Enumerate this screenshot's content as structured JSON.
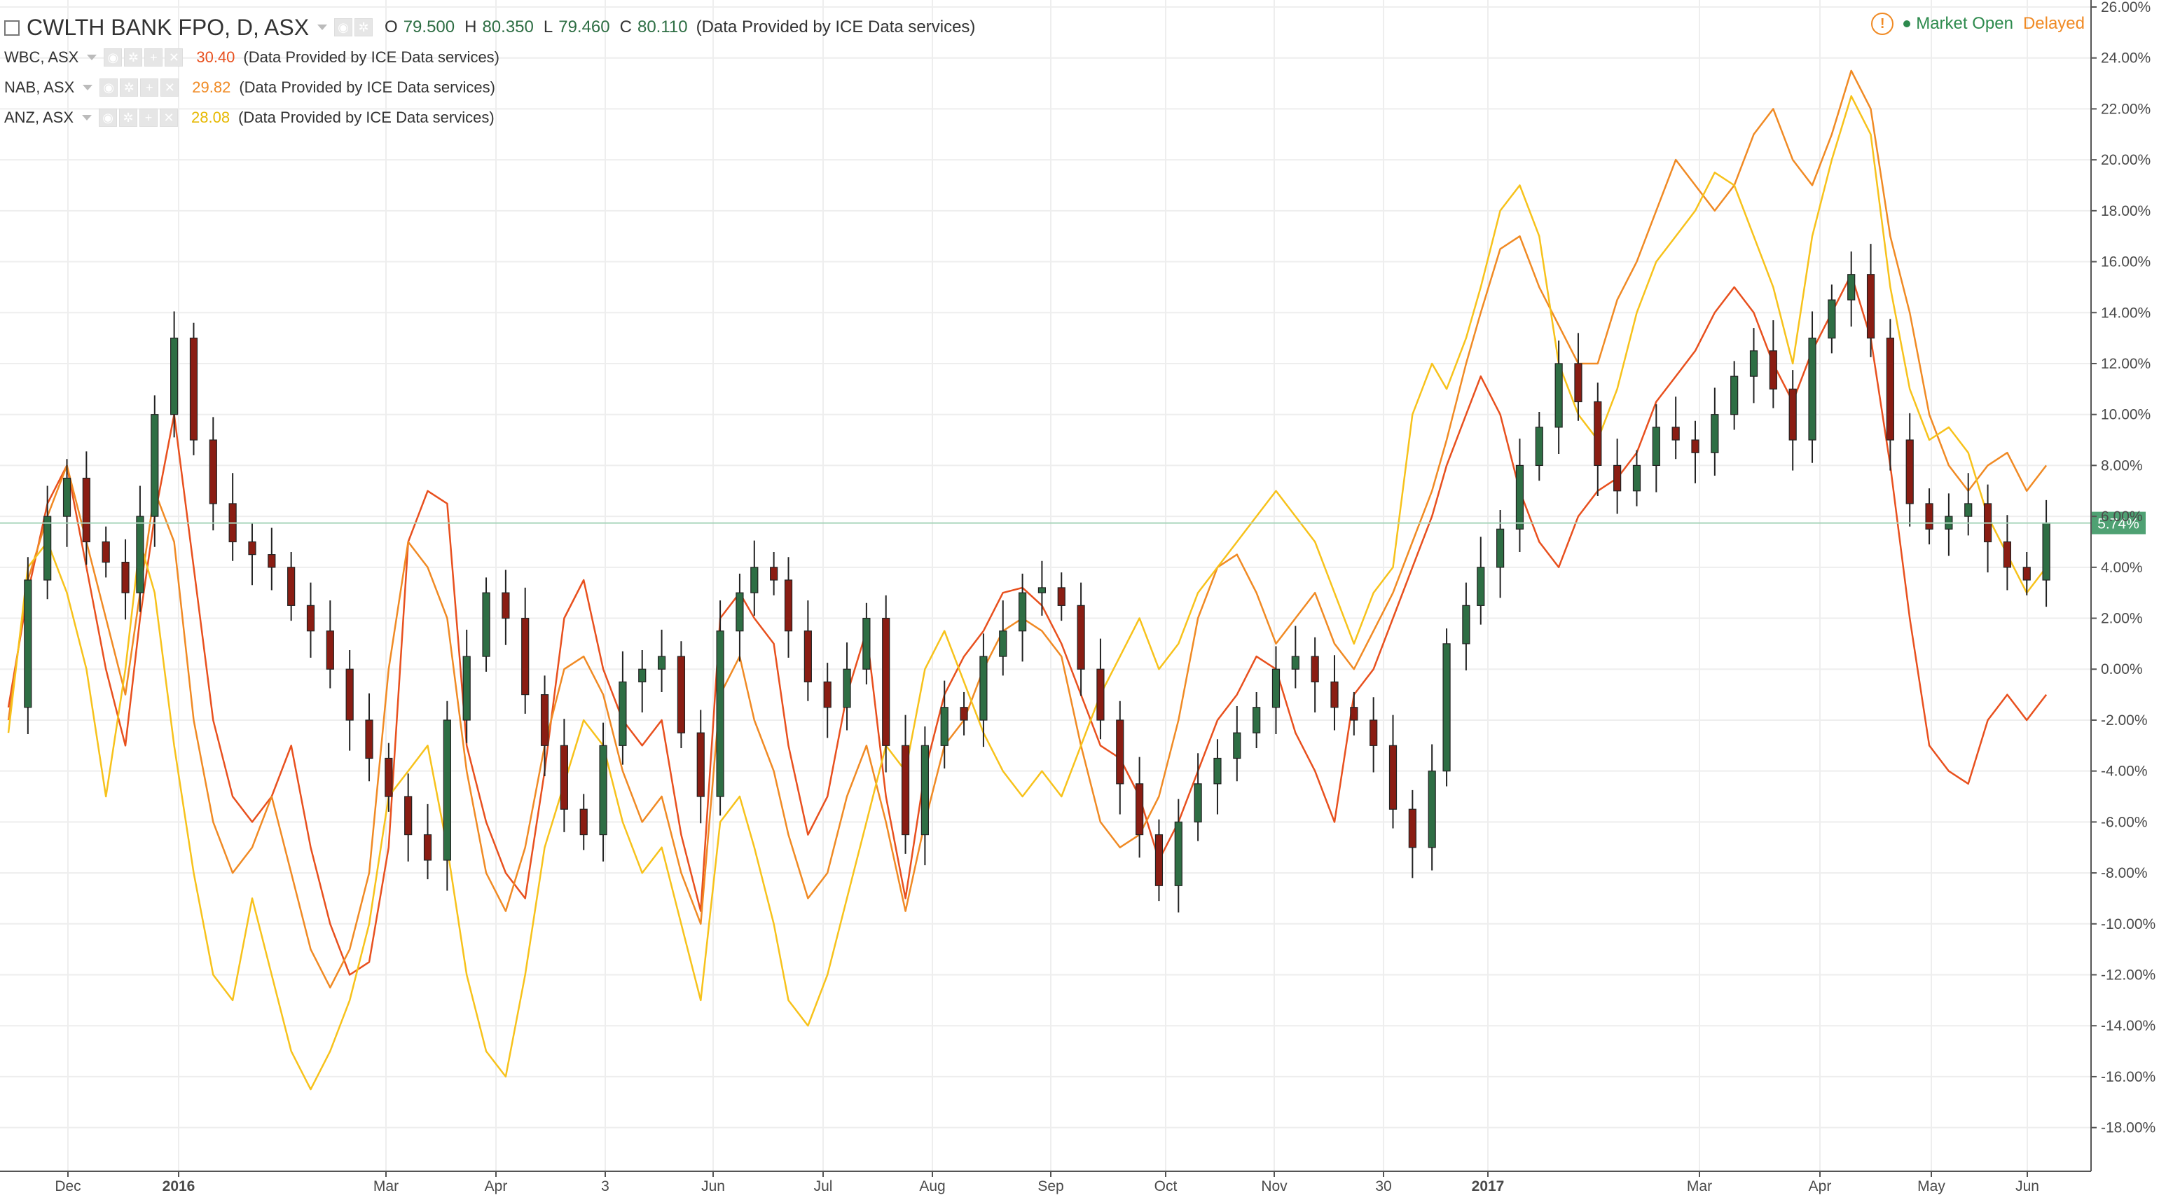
{
  "header": {
    "symbol": "CWLTH BANK FPO, D, ASX",
    "open_label": "O",
    "open": "79.500",
    "high_label": "H",
    "high": "80.350",
    "low_label": "L",
    "low": "79.460",
    "close_label": "C",
    "close": "80.110",
    "provider": "(Data Provided by ICE Data services)"
  },
  "market_status": {
    "open_text": "Market Open",
    "delayed_text": "Delayed",
    "warn_glyph": "!"
  },
  "comparisons": [
    {
      "name": "WBC, ASX",
      "value": "30.40",
      "provider": "(Data Provided by ICE Data services)",
      "color": "#e8501e"
    },
    {
      "name": "NAB, ASX",
      "value": "29.82",
      "provider": "(Data Provided by ICE Data services)",
      "color": "#f08a24"
    },
    {
      "name": "ANZ, ASX",
      "value": "28.08",
      "provider": "(Data Provided by ICE Data services)",
      "color": "#f7c21b"
    }
  ],
  "colors": {
    "up": "#2e6e44",
    "down": "#8a1d13",
    "grid": "#eeeeee",
    "price_line": "#a9d5bb",
    "price_badge": "#4fa173"
  },
  "chart_data": {
    "type": "line",
    "x_axis_ticks": [
      "Dec",
      "2016",
      "Mar",
      "Apr",
      "3",
      "Jun",
      "Jul",
      "Aug",
      "Sep",
      "Oct",
      "Nov",
      "30",
      "2017",
      "Mar",
      "Apr",
      "May",
      "Jun"
    ],
    "y_axis_ticks": [
      "26.00%",
      "24.00%",
      "22.00%",
      "20.00%",
      "18.00%",
      "16.00%",
      "14.00%",
      "12.00%",
      "10.00%",
      "8.00%",
      "6.00%",
      "4.00%",
      "2.00%",
      "0.00%",
      "-2.00%",
      "-4.00%",
      "-6.00%",
      "-8.00%",
      "-10.00%",
      "-12.00%",
      "-14.00%",
      "-16.00%",
      "-18.00%"
    ],
    "ylim": [
      -19.0,
      26.0
    ],
    "current_value_label": "5.74%",
    "current_value": 5.74,
    "main_series": {
      "name": "CWLTH BANK FPO",
      "type": "candlestick",
      "x": [
        0,
        4,
        8,
        12,
        16,
        20,
        24,
        27,
        30,
        34,
        38,
        42,
        46,
        50,
        54,
        58,
        62,
        66,
        70,
        74,
        78,
        82,
        86,
        90,
        94,
        98,
        102,
        106,
        110,
        114,
        118,
        122,
        126,
        130,
        134,
        138,
        142,
        146,
        150,
        153,
        157,
        160,
        164,
        168,
        172,
        176,
        180,
        184,
        188,
        192,
        196,
        200,
        204,
        208,
        212,
        216,
        220,
        224,
        228,
        232,
        236,
        240,
        244,
        248,
        252,
        256,
        260,
        264,
        268,
        272,
        276,
        280,
        284,
        288,
        292,
        295,
        299,
        302,
        306,
        310,
        314,
        318,
        322,
        326,
        330,
        334,
        338,
        342,
        346,
        350,
        354,
        358,
        362,
        366,
        370,
        374,
        378,
        382,
        386,
        390,
        394,
        398,
        402,
        406,
        410,
        414,
        418
      ],
      "y": [
        -1.5,
        3.5,
        6.0,
        7.5,
        5.0,
        4.2,
        3.0,
        6.0,
        10.0,
        13.0,
        9.0,
        6.5,
        5.0,
        4.5,
        4.0,
        2.5,
        1.5,
        0.0,
        -2.0,
        -3.5,
        -5.0,
        -6.5,
        -7.5,
        -2.0,
        0.5,
        3.0,
        2.0,
        -1.0,
        -3.0,
        -5.5,
        -6.5,
        -3.0,
        -0.5,
        0.0,
        0.5,
        -2.5,
        -5.0,
        1.5,
        3.0,
        4.0,
        3.5,
        1.5,
        -0.5,
        -1.5,
        0.0,
        2.0,
        -3.0,
        -6.5,
        -3.0,
        -1.5,
        -2.0,
        0.5,
        1.5,
        3.0,
        3.2,
        2.5,
        0.0,
        -2.0,
        -4.5,
        -6.5,
        -8.5,
        -6.0,
        -4.5,
        -3.5,
        -2.5,
        -1.5,
        0.0,
        0.5,
        -0.5,
        -1.5,
        -2.0,
        -3.0,
        -5.5,
        -7.0,
        -4.0,
        1.0,
        2.5,
        4.0,
        5.5,
        8.0,
        9.5,
        12.0,
        10.5,
        8.0,
        7.0,
        8.0,
        9.5,
        9.0,
        8.5,
        10.0,
        11.5,
        12.5,
        11.0,
        9.0,
        13.0,
        14.5,
        15.5,
        13.0,
        9.0,
        6.5,
        5.5,
        6.0,
        6.5,
        5.0,
        4.0,
        3.5,
        5.74
      ]
    },
    "series": [
      {
        "name": "WBC, ASX",
        "x": [
          0,
          4,
          8,
          12,
          16,
          20,
          24,
          27,
          30,
          34,
          38,
          42,
          46,
          50,
          54,
          58,
          62,
          66,
          70,
          74,
          78,
          82,
          86,
          90,
          94,
          98,
          102,
          106,
          110,
          114,
          118,
          122,
          126,
          130,
          134,
          138,
          142,
          146,
          150,
          153,
          157,
          160,
          164,
          168,
          172,
          176,
          180,
          184,
          188,
          192,
          196,
          200,
          204,
          208,
          212,
          216,
          220,
          224,
          228,
          232,
          236,
          240,
          244,
          248,
          252,
          256,
          260,
          264,
          268,
          272,
          276,
          280,
          284,
          288,
          292,
          295,
          299,
          302,
          306,
          310,
          314,
          318,
          322,
          326,
          330,
          334,
          338,
          342,
          346,
          350,
          354,
          358,
          362,
          366,
          370,
          374,
          378,
          382,
          386,
          390,
          394,
          398,
          402,
          406,
          410,
          414,
          418
        ],
        "y": [
          -1.5,
          3.0,
          6.5,
          8.0,
          4.0,
          0.0,
          -3.0,
          2.0,
          6.0,
          10.0,
          4.0,
          -2.0,
          -5.0,
          -6.0,
          -5.0,
          -3.0,
          -7.0,
          -10.0,
          -12.0,
          -11.5,
          -7.0,
          5.0,
          7.0,
          6.5,
          -3.0,
          -6.0,
          -8.0,
          -9.0,
          -4.0,
          2.0,
          3.5,
          0.0,
          -2.0,
          -3.0,
          -2.0,
          -6.5,
          -9.5,
          2.0,
          3.0,
          2.0,
          1.0,
          -3.0,
          -6.5,
          -5.0,
          -1.0,
          1.5,
          -5.0,
          -9.0,
          -4.0,
          -1.0,
          0.5,
          1.5,
          3.0,
          3.2,
          2.5,
          1.0,
          -1.0,
          -3.0,
          -3.5,
          -5.0,
          -7.5,
          -6.0,
          -4.0,
          -2.0,
          -1.0,
          0.5,
          0.0,
          -2.5,
          -4.0,
          -6.0,
          -1.0,
          0.0,
          2.0,
          4.0,
          6.0,
          8.0,
          10.0,
          11.5,
          10.0,
          7.0,
          5.0,
          4.0,
          6.0,
          7.0,
          7.5,
          8.5,
          10.5,
          11.5,
          12.5,
          14.0,
          15.0,
          14.0,
          12.0,
          10.5,
          12.5,
          14.0,
          15.5,
          13.0,
          8.0,
          2.0,
          -3.0,
          -4.0,
          -4.5,
          -2.0,
          -1.0,
          -2.0,
          -1.0
        ]
      },
      {
        "name": "NAB, ASX",
        "x": [
          0,
          4,
          8,
          12,
          16,
          20,
          24,
          27,
          30,
          34,
          38,
          42,
          46,
          50,
          54,
          58,
          62,
          66,
          70,
          74,
          78,
          82,
          86,
          90,
          94,
          98,
          102,
          106,
          110,
          114,
          118,
          122,
          126,
          130,
          134,
          138,
          142,
          146,
          150,
          153,
          157,
          160,
          164,
          168,
          172,
          176,
          180,
          184,
          188,
          192,
          196,
          200,
          204,
          208,
          212,
          216,
          220,
          224,
          228,
          232,
          236,
          240,
          244,
          248,
          252,
          256,
          260,
          264,
          268,
          272,
          276,
          280,
          284,
          288,
          292,
          295,
          299,
          302,
          306,
          310,
          314,
          318,
          322,
          326,
          330,
          334,
          338,
          342,
          346,
          350,
          354,
          358,
          362,
          366,
          370,
          374,
          378,
          382,
          386,
          390,
          394,
          398,
          402,
          406,
          410,
          414,
          418
        ],
        "y": [
          -2.0,
          3.5,
          6.0,
          8.0,
          5.0,
          2.0,
          -1.0,
          3.0,
          7.0,
          5.0,
          -2.0,
          -6.0,
          -8.0,
          -7.0,
          -5.0,
          -8.0,
          -11.0,
          -12.5,
          -11.0,
          -8.0,
          0.0,
          5.0,
          4.0,
          2.0,
          -4.0,
          -8.0,
          -9.5,
          -7.0,
          -3.0,
          0.0,
          0.5,
          -1.0,
          -4.0,
          -6.0,
          -5.0,
          -8.0,
          -10.0,
          -1.0,
          0.5,
          -2.0,
          -4.0,
          -6.5,
          -9.0,
          -8.0,
          -5.0,
          -3.0,
          -6.0,
          -9.5,
          -6.0,
          -3.0,
          -2.0,
          0.0,
          1.5,
          2.0,
          1.5,
          0.5,
          -3.0,
          -6.0,
          -7.0,
          -6.5,
          -5.0,
          -2.0,
          2.0,
          4.0,
          4.5,
          3.0,
          1.0,
          2.0,
          3.0,
          1.0,
          0.0,
          1.5,
          3.0,
          5.0,
          7.0,
          9.0,
          12.0,
          14.0,
          16.5,
          17.0,
          15.0,
          13.5,
          12.0,
          12.0,
          14.5,
          16.0,
          18.0,
          20.0,
          19.0,
          18.0,
          19.0,
          21.0,
          22.0,
          20.0,
          19.0,
          21.0,
          23.5,
          22.0,
          17.0,
          14.0,
          10.0,
          8.0,
          7.0,
          8.0,
          8.5,
          7.0,
          8.0
        ]
      },
      {
        "name": "ANZ, ASX",
        "x": [
          0,
          4,
          8,
          12,
          16,
          20,
          24,
          27,
          30,
          34,
          38,
          42,
          46,
          50,
          54,
          58,
          62,
          66,
          70,
          74,
          78,
          82,
          86,
          90,
          94,
          98,
          102,
          106,
          110,
          114,
          118,
          122,
          126,
          130,
          134,
          138,
          142,
          146,
          150,
          153,
          157,
          160,
          164,
          168,
          172,
          176,
          180,
          184,
          188,
          192,
          196,
          200,
          204,
          208,
          212,
          216,
          220,
          224,
          228,
          232,
          236,
          240,
          244,
          248,
          252,
          256,
          260,
          264,
          268,
          272,
          276,
          280,
          284,
          288,
          292,
          295,
          299,
          302,
          306,
          310,
          314,
          318,
          322,
          326,
          330,
          334,
          338,
          342,
          346,
          350,
          354,
          358,
          362,
          366,
          370,
          374,
          378,
          382,
          386,
          390,
          394,
          398,
          402,
          406,
          410,
          414,
          418
        ],
        "y": [
          -2.5,
          4.0,
          5.0,
          3.0,
          0.0,
          -5.0,
          0.0,
          5.0,
          3.0,
          -3.0,
          -8.0,
          -12.0,
          -13.0,
          -9.0,
          -12.0,
          -15.0,
          -16.5,
          -15.0,
          -13.0,
          -10.0,
          -5.0,
          -4.0,
          -3.0,
          -7.0,
          -12.0,
          -15.0,
          -16.0,
          -12.0,
          -7.0,
          -4.5,
          -2.0,
          -3.0,
          -6.0,
          -8.0,
          -7.0,
          -10.0,
          -13.0,
          -6.0,
          -5.0,
          -7.0,
          -10.0,
          -13.0,
          -14.0,
          -12.0,
          -9.0,
          -6.0,
          -3.0,
          -4.0,
          0.0,
          1.5,
          -0.5,
          -2.5,
          -4.0,
          -5.0,
          -4.0,
          -5.0,
          -3.0,
          -1.0,
          0.5,
          2.0,
          0.0,
          1.0,
          3.0,
          4.0,
          5.0,
          6.0,
          7.0,
          6.0,
          5.0,
          3.0,
          1.0,
          3.0,
          4.0,
          10.0,
          12.0,
          11.0,
          13.0,
          15.0,
          18.0,
          19.0,
          17.0,
          12.0,
          10.0,
          9.0,
          11.0,
          14.0,
          16.0,
          17.0,
          18.0,
          19.5,
          19.0,
          17.0,
          15.0,
          12.0,
          17.0,
          20.0,
          22.5,
          21.0,
          15.0,
          11.0,
          9.0,
          9.5,
          8.5,
          6.0,
          4.5,
          3.0,
          4.0
        ]
      }
    ],
    "grid": true,
    "legend": "top-left"
  }
}
